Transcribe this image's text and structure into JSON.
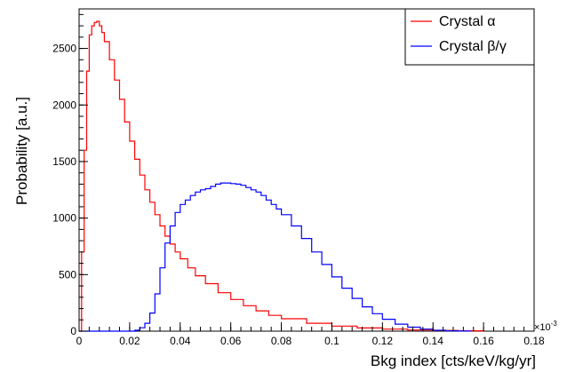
{
  "chart_data": {
    "type": "line",
    "title": "",
    "xlabel": "Bkg index [cts/keV/kg/yr]",
    "ylabel": "Probability [a.u.]",
    "x_exponent_label": "×10",
    "x_exponent_power": "-3",
    "xlim": [
      0,
      0.18
    ],
    "ylim": [
      0,
      2850
    ],
    "x_ticks": [
      0,
      0.02,
      0.04,
      0.06,
      0.08,
      0.1,
      0.12,
      0.14,
      0.16,
      0.18
    ],
    "x_tick_labels": [
      "0",
      "0.02",
      "0.04",
      "0.06",
      "0.08",
      "0.1",
      "0.12",
      "0.14",
      "0.16",
      "0.18"
    ],
    "y_ticks": [
      0,
      500,
      1000,
      1500,
      2000,
      2500
    ],
    "y_tick_labels": [
      "0",
      "500",
      "1000",
      "1500",
      "2000",
      "2500"
    ],
    "grid": false,
    "legend_position": "top-right",
    "series": [
      {
        "name": "Crystal α",
        "legend_label": "Crystal α",
        "color": "#ff0000",
        "x": [
          0,
          0.001,
          0.002,
          0.003,
          0.004,
          0.005,
          0.006,
          0.007,
          0.008,
          0.009,
          0.01,
          0.012,
          0.014,
          0.016,
          0.018,
          0.02,
          0.022,
          0.024,
          0.026,
          0.028,
          0.03,
          0.032,
          0.034,
          0.036,
          0.038,
          0.04,
          0.043,
          0.046,
          0.05,
          0.055,
          0.06,
          0.065,
          0.07,
          0.075,
          0.08,
          0.09,
          0.1,
          0.11,
          0.12,
          0.13,
          0.14,
          0.15,
          0.16
        ],
        "values": [
          0,
          700,
          1600,
          2300,
          2620,
          2700,
          2730,
          2740,
          2700,
          2640,
          2560,
          2400,
          2220,
          2050,
          1850,
          1680,
          1520,
          1380,
          1250,
          1140,
          1030,
          930,
          840,
          770,
          700,
          640,
          560,
          490,
          420,
          340,
          280,
          225,
          180,
          140,
          110,
          70,
          45,
          28,
          18,
          10,
          6,
          3,
          1
        ]
      },
      {
        "name": "Crystal β/γ",
        "legend_label": "Crystal β/γ",
        "color": "#0000ff",
        "x": [
          0,
          0.02,
          0.022,
          0.024,
          0.026,
          0.028,
          0.03,
          0.032,
          0.034,
          0.036,
          0.038,
          0.04,
          0.042,
          0.044,
          0.046,
          0.048,
          0.05,
          0.052,
          0.054,
          0.056,
          0.058,
          0.06,
          0.062,
          0.064,
          0.066,
          0.068,
          0.07,
          0.072,
          0.074,
          0.076,
          0.078,
          0.08,
          0.084,
          0.088,
          0.092,
          0.096,
          0.1,
          0.104,
          0.108,
          0.112,
          0.116,
          0.12,
          0.125,
          0.13,
          0.135,
          0.14,
          0.145,
          0.15,
          0.155
        ],
        "values": [
          0,
          0,
          8,
          30,
          70,
          160,
          330,
          560,
          780,
          930,
          1050,
          1120,
          1160,
          1200,
          1230,
          1250,
          1260,
          1280,
          1300,
          1310,
          1310,
          1305,
          1300,
          1290,
          1270,
          1250,
          1230,
          1200,
          1160,
          1120,
          1080,
          1030,
          930,
          820,
          700,
          590,
          480,
          380,
          290,
          215,
          155,
          105,
          62,
          35,
          18,
          8,
          3,
          1,
          0
        ]
      }
    ]
  }
}
